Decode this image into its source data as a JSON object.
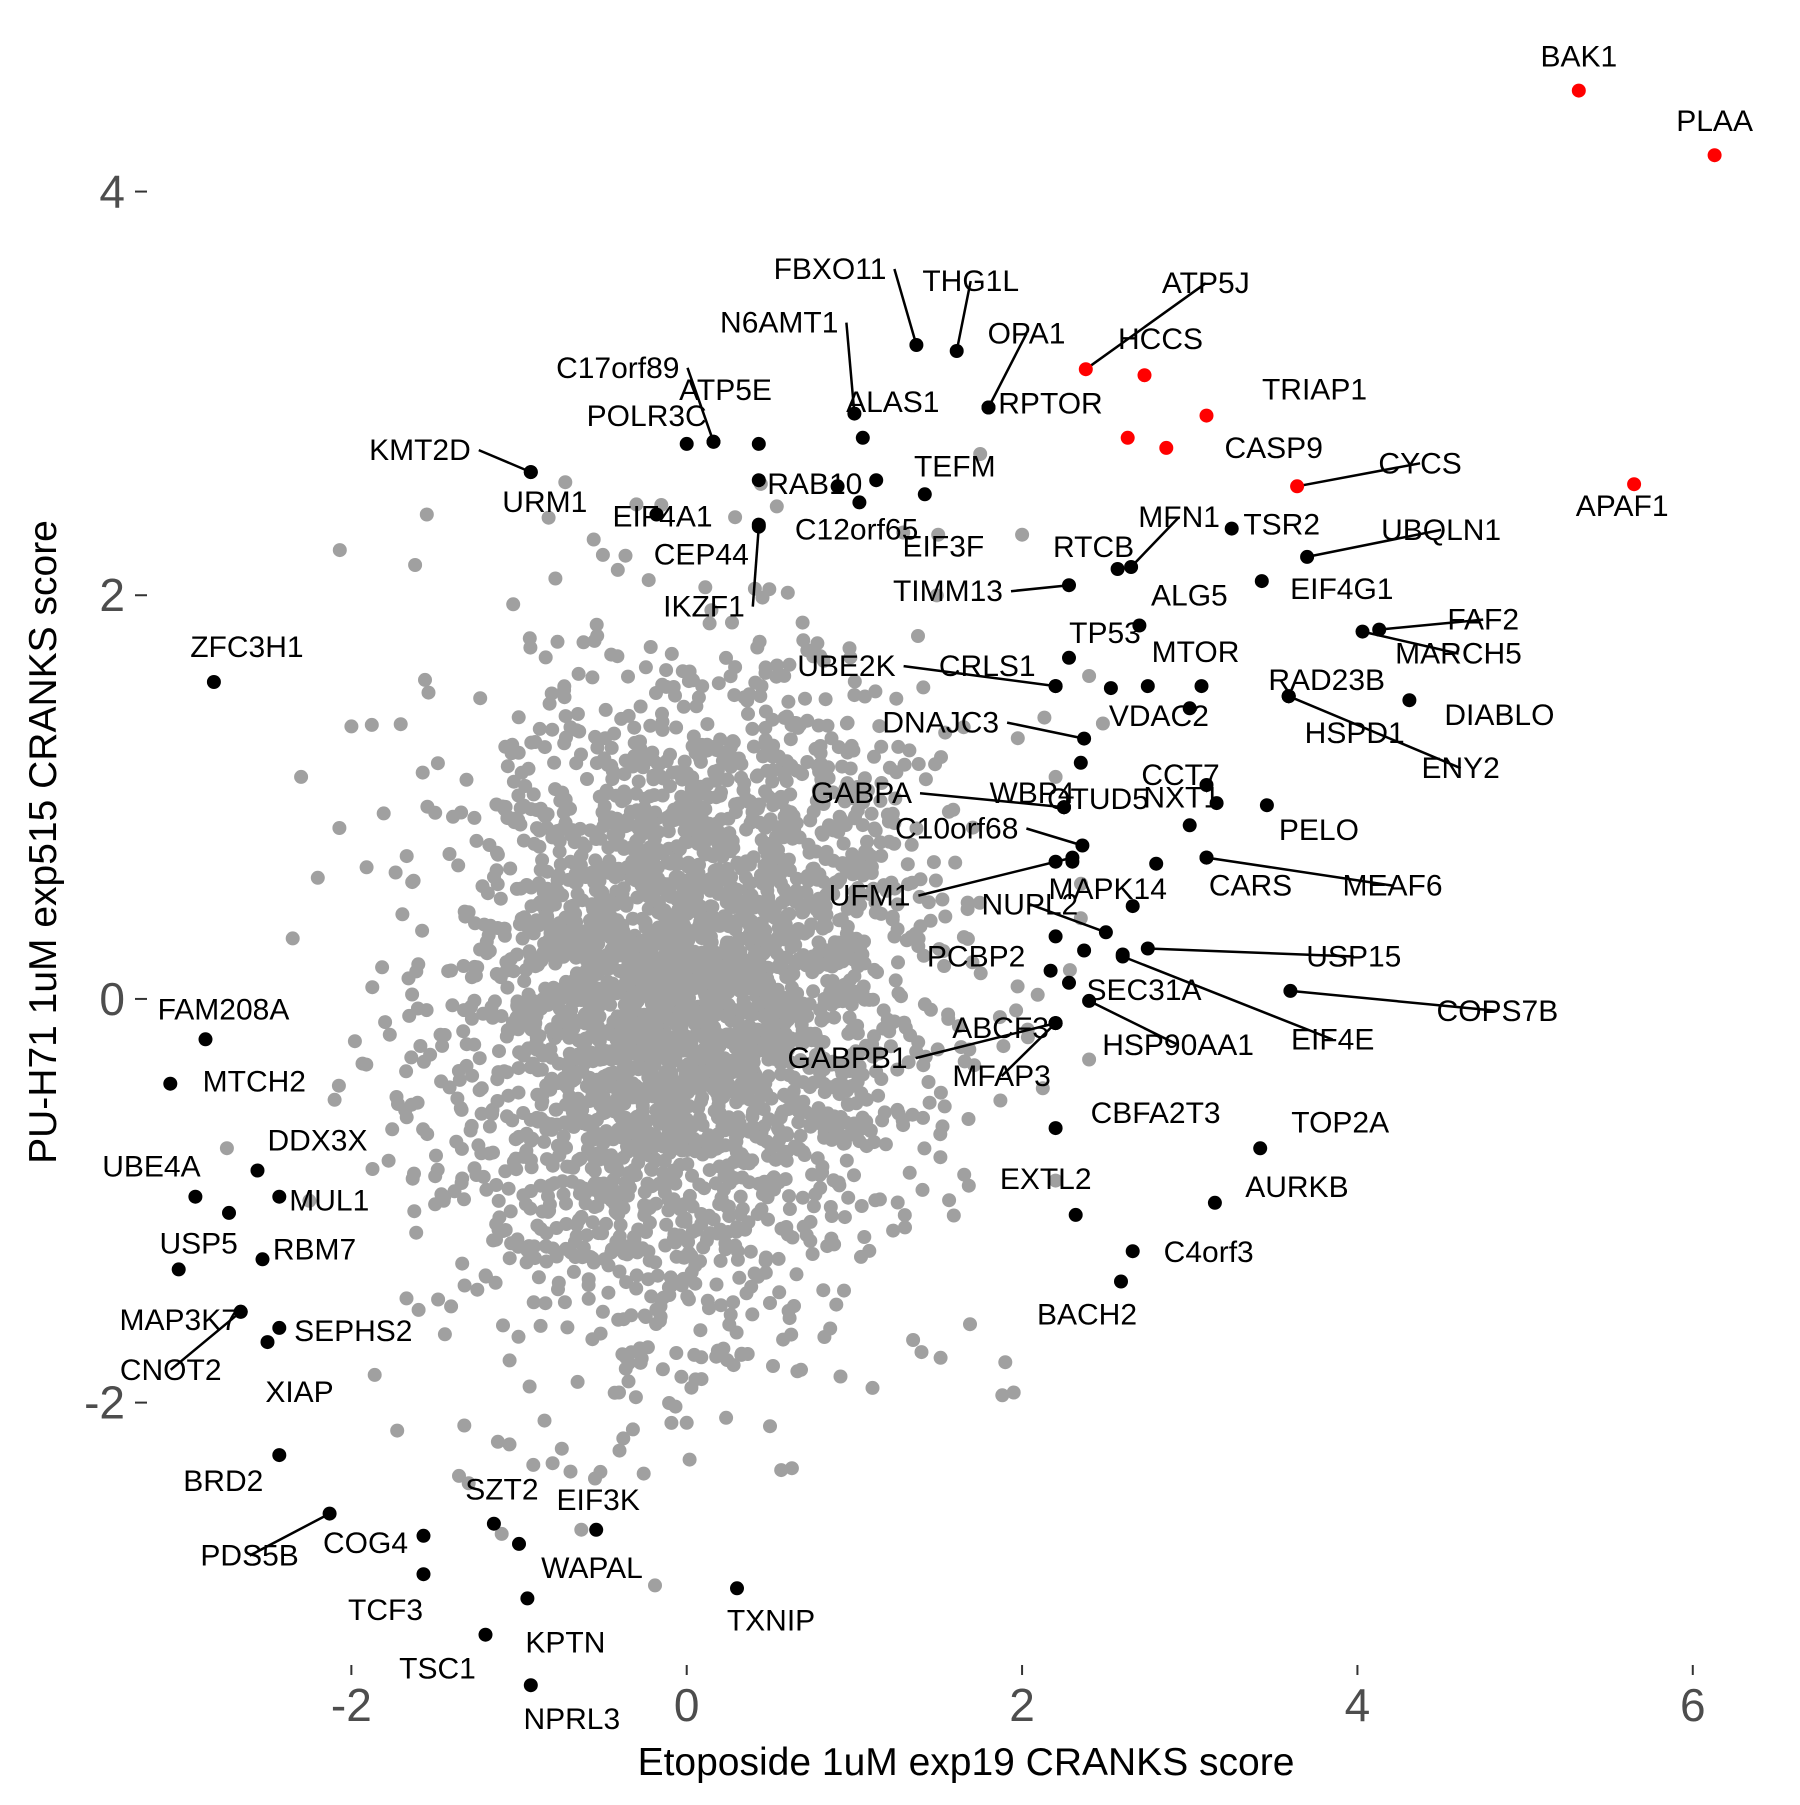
{
  "chart_data": {
    "type": "scatter",
    "title": "",
    "xlabel": "Etoposide 1uM exp19 CRANKS score",
    "ylabel": "PU-H71 1uM exp515 CRANKS score",
    "xlim": [
      -3.35,
      6.55
    ],
    "ylim": [
      -3.3,
      4.85
    ],
    "xticks": [
      -2,
      0,
      2,
      4,
      6
    ],
    "yticks": [
      -2,
      0,
      2,
      4
    ],
    "xtick_labels": [
      "-2",
      "0",
      "2",
      "4",
      "6"
    ],
    "ytick_labels": [
      "-2",
      "0",
      "2",
      "4"
    ],
    "grid": false,
    "legend": "none",
    "colors": {
      "background_genes": "#a0a0a0",
      "labeled_genes": "#000000",
      "highlighted_genes": "#ff0000"
    },
    "background": {
      "description": "all screened genes (gray)",
      "count": 3200,
      "center": [
        0.0,
        0.0
      ],
      "sd": [
        0.7,
        0.8
      ],
      "outliers": [
        [
          -1.55,
          2.4
        ],
        [
          -1.62,
          2.15
        ],
        [
          -0.3,
          2.45
        ],
        [
          -0.5,
          2.2
        ],
        [
          -2.0,
          1.35
        ],
        [
          -2.3,
          1.1
        ],
        [
          -2.2,
          0.6
        ],
        [
          -2.35,
          0.3
        ],
        [
          -2.1,
          -0.5
        ],
        [
          -2.25,
          -1.0
        ],
        [
          -1.3,
          -2.4
        ],
        [
          -0.8,
          -2.3
        ],
        [
          1.75,
          2.7
        ],
        [
          1.5,
          2.3
        ],
        [
          1.9,
          -1.8
        ],
        [
          1.95,
          -1.95
        ],
        [
          0.0,
          -2.1
        ],
        [
          1.4,
          -1.75
        ],
        [
          2.0,
          2.3
        ],
        [
          2.4,
          1.6
        ],
        [
          2.2,
          1.1
        ],
        [
          2.35,
          0.4
        ],
        [
          2.4,
          -0.3
        ],
        [
          2.2,
          -0.9
        ]
      ]
    },
    "highlighted": [
      {
        "gene": "BAK1",
        "x": 5.32,
        "y": 4.5
      },
      {
        "gene": "PLAA",
        "x": 6.13,
        "y": 4.18
      },
      {
        "gene": "APAF1",
        "x": 5.65,
        "y": 2.55
      },
      {
        "gene": "ATP5J",
        "x": 2.38,
        "y": 3.12
      },
      {
        "gene": "HCCS",
        "x": 2.73,
        "y": 3.09
      },
      {
        "gene": "TRIAP1",
        "x": 3.1,
        "y": 2.89
      },
      {
        "gene": "CASP9",
        "x": 2.63,
        "y": 2.78
      },
      {
        "gene": "",
        "x": 2.86,
        "y": 2.73
      },
      {
        "gene": "CYCS",
        "x": 3.64,
        "y": 2.54
      }
    ],
    "labeled": [
      {
        "gene": "ZFC3H1",
        "x": -2.82,
        "y": 1.57
      },
      {
        "gene": "KMT2D",
        "x": -0.93,
        "y": 2.61
      },
      {
        "gene": "URM1",
        "x": -0.93,
        "y": 2.61
      },
      {
        "gene": "POLR3C",
        "x": 0.0,
        "y": 2.75
      },
      {
        "gene": "C17orf89",
        "x": 0.16,
        "y": 2.76
      },
      {
        "gene": "ATP5E",
        "x": 0.16,
        "y": 2.76
      },
      {
        "gene": "EIF4A1",
        "x": -0.18,
        "y": 2.4
      },
      {
        "gene": "CEP44",
        "x": 0.43,
        "y": 2.35
      },
      {
        "gene": "IKZF1",
        "x": 0.43,
        "y": 2.34
      },
      {
        "gene": "RAB10",
        "x": 0.43,
        "y": 2.57
      },
      {
        "gene": "",
        "x": 0.43,
        "y": 2.75
      },
      {
        "gene": "FBXO11",
        "x": 1.37,
        "y": 3.24
      },
      {
        "gene": "THG1L",
        "x": 1.61,
        "y": 3.21
      },
      {
        "gene": "N6AMT1",
        "x": 1.0,
        "y": 2.9
      },
      {
        "gene": "ALAS1",
        "x": 1.05,
        "y": 2.78
      },
      {
        "gene": "OPA1",
        "x": 1.8,
        "y": 2.93
      },
      {
        "gene": "RPTOR",
        "x": 1.8,
        "y": 2.93
      },
      {
        "gene": "TEFM",
        "x": 1.42,
        "y": 2.5
      },
      {
        "gene": "C12orf65",
        "x": 0.9,
        "y": 2.54
      },
      {
        "gene": "EIF3F",
        "x": 1.03,
        "y": 2.46
      },
      {
        "gene": "",
        "x": 1.13,
        "y": 2.57
      },
      {
        "gene": "RTCB",
        "x": 2.57,
        "y": 2.13
      },
      {
        "gene": "MFN1",
        "x": 2.65,
        "y": 2.14
      },
      {
        "gene": "TSR2",
        "x": 3.25,
        "y": 2.33
      },
      {
        "gene": "UBQLN1",
        "x": 3.7,
        "y": 2.19
      },
      {
        "gene": "ALG5",
        "x": 2.7,
        "y": 1.85
      },
      {
        "gene": "EIF4G1",
        "x": 3.43,
        "y": 2.07
      },
      {
        "gene": "FAF2",
        "x": 4.13,
        "y": 1.83
      },
      {
        "gene": "MARCH5",
        "x": 4.03,
        "y": 1.82
      },
      {
        "gene": "TIMM13",
        "x": 2.28,
        "y": 2.05
      },
      {
        "gene": "TP53",
        "x": 2.28,
        "y": 1.69
      },
      {
        "gene": "MTOR",
        "x": 3.07,
        "y": 1.55
      },
      {
        "gene": "CRLS1",
        "x": 2.2,
        "y": 1.55
      },
      {
        "gene": "UBE2K",
        "x": 2.2,
        "y": 1.55
      },
      {
        "gene": "",
        "x": 2.75,
        "y": 1.55
      },
      {
        "gene": "RAD23B",
        "x": 3.59,
        "y": 1.5
      },
      {
        "gene": "HSPD1",
        "x": 3.59,
        "y": 1.5
      },
      {
        "gene": "DIABLO",
        "x": 4.31,
        "y": 1.48
      },
      {
        "gene": "ENY2",
        "x": 3.59,
        "y": 1.5
      },
      {
        "gene": "DNAJC3",
        "x": 2.37,
        "y": 1.29
      },
      {
        "gene": "VDAC2",
        "x": 2.53,
        "y": 1.54
      },
      {
        "gene": "",
        "x": 2.35,
        "y": 1.17
      },
      {
        "gene": "",
        "x": 3.0,
        "y": 1.44
      },
      {
        "gene": "CCT7",
        "x": 3.1,
        "y": 1.06
      },
      {
        "gene": "",
        "x": 3.16,
        "y": 0.97
      },
      {
        "gene": "PELO",
        "x": 3.46,
        "y": 0.96
      },
      {
        "gene": "GABPA",
        "x": 2.25,
        "y": 0.95
      },
      {
        "gene": "WBP4",
        "x": 2.25,
        "y": 0.95
      },
      {
        "gene": "OTUD5",
        "x": 2.25,
        "y": 0.95
      },
      {
        "gene": "NXT1",
        "x": 3.0,
        "y": 0.86
      },
      {
        "gene": "C10orf68",
        "x": 2.36,
        "y": 0.76
      },
      {
        "gene": "",
        "x": 2.3,
        "y": 0.68
      },
      {
        "gene": "",
        "x": 2.2,
        "y": 0.68
      },
      {
        "gene": "MEAF6",
        "x": 3.1,
        "y": 0.7
      },
      {
        "gene": "CARS",
        "x": 3.1,
        "y": 0.7
      },
      {
        "gene": "",
        "x": 2.8,
        "y": 0.67
      },
      {
        "gene": "UFM1",
        "x": 2.3,
        "y": 0.7
      },
      {
        "gene": "NUPL2",
        "x": 2.5,
        "y": 0.33
      },
      {
        "gene": "MAPK14",
        "x": 2.66,
        "y": 0.46
      },
      {
        "gene": "",
        "x": 2.2,
        "y": 0.31
      },
      {
        "gene": "USP15",
        "x": 2.75,
        "y": 0.25
      },
      {
        "gene": "",
        "x": 2.6,
        "y": 0.22
      },
      {
        "gene": "EIF4E",
        "x": 2.6,
        "y": 0.21
      },
      {
        "gene": "PCBP2",
        "x": 2.37,
        "y": 0.24
      },
      {
        "gene": "",
        "x": 2.17,
        "y": 0.14
      },
      {
        "gene": "COPS7B",
        "x": 3.6,
        "y": 0.04
      },
      {
        "gene": "SEC31A",
        "x": 2.28,
        "y": 0.08
      },
      {
        "gene": "HSP90AA1",
        "x": 2.4,
        "y": -0.01
      },
      {
        "gene": "GABPB1",
        "x": 2.2,
        "y": -0.12
      },
      {
        "gene": "ABCF3",
        "x": 2.2,
        "y": -0.12
      },
      {
        "gene": "MFAP3",
        "x": 2.2,
        "y": -0.12
      },
      {
        "gene": "CBFA2T3",
        "x": 2.2,
        "y": -0.64
      },
      {
        "gene": "TOP2A",
        "x": 3.42,
        "y": -0.74
      },
      {
        "gene": "AURKB",
        "x": 3.15,
        "y": -1.01
      },
      {
        "gene": "EXTL2",
        "x": 2.32,
        "y": -1.07
      },
      {
        "gene": "C4orf3",
        "x": 2.66,
        "y": -1.25
      },
      {
        "gene": "BACH2",
        "x": 2.59,
        "y": -1.4
      },
      {
        "gene": "TXNIP",
        "x": 0.3,
        "y": -2.92
      },
      {
        "gene": "EIF3K",
        "x": -0.54,
        "y": -2.63
      },
      {
        "gene": "SZT2",
        "x": -1.15,
        "y": -2.6
      },
      {
        "gene": "WAPAL",
        "x": -1.0,
        "y": -2.7
      },
      {
        "gene": "KPTN",
        "x": -0.95,
        "y": -2.97
      },
      {
        "gene": "TSC1",
        "x": -1.2,
        "y": -3.15
      },
      {
        "gene": "NPRL3",
        "x": -0.93,
        "y": -3.4
      },
      {
        "gene": "TCF3",
        "x": -1.57,
        "y": -2.85
      },
      {
        "gene": "COG4",
        "x": -1.57,
        "y": -2.66
      },
      {
        "gene": "PDS5B",
        "x": -2.13,
        "y": -2.55
      },
      {
        "gene": "BRD2",
        "x": -2.43,
        "y": -2.26
      },
      {
        "gene": "FAM208A",
        "x": -2.87,
        "y": -0.2
      },
      {
        "gene": "MTCH2",
        "x": -3.08,
        "y": -0.42
      },
      {
        "gene": "UBE4A",
        "x": -2.93,
        "y": -0.98
      },
      {
        "gene": "DDX3X",
        "x": -2.56,
        "y": -0.85
      },
      {
        "gene": "",
        "x": -2.73,
        "y": -1.06
      },
      {
        "gene": "MUL1",
        "x": -2.43,
        "y": -0.98
      },
      {
        "gene": "USP5",
        "x": -3.03,
        "y": -1.34
      },
      {
        "gene": "RBM7",
        "x": -2.53,
        "y": -1.29
      },
      {
        "gene": "MAP3K7",
        "x": -2.66,
        "y": -1.55
      },
      {
        "gene": "CNOT2",
        "x": -2.66,
        "y": -1.55
      },
      {
        "gene": "SEPHS2",
        "x": -2.43,
        "y": -1.63
      },
      {
        "gene": "XIAP",
        "x": -2.5,
        "y": -1.7
      }
    ]
  }
}
